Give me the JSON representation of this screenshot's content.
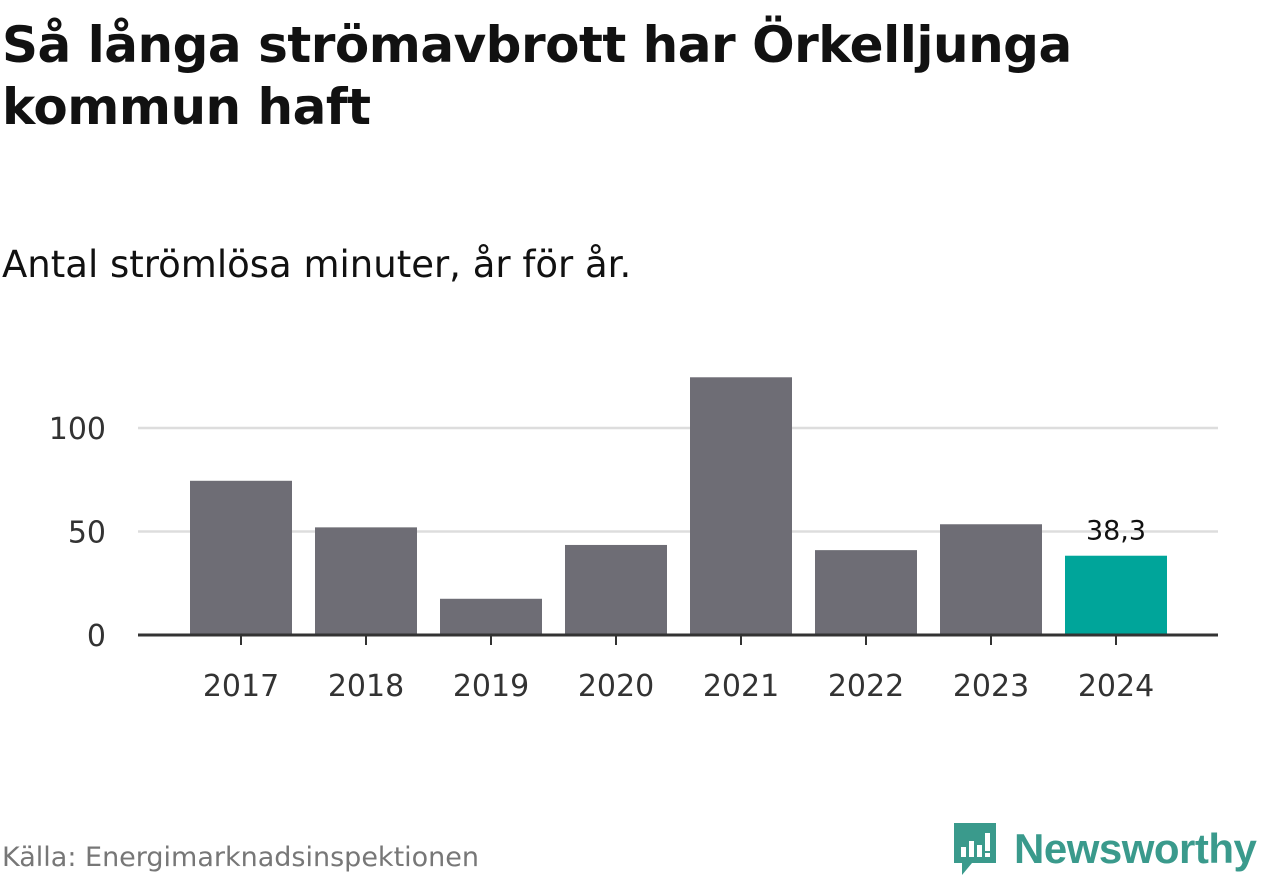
{
  "chart_data": {
    "type": "bar",
    "title": "Så långa strömavbrott har Örkelljunga kommun haft",
    "subtitle": "Antal strömlösa minuter, år för år.",
    "categories": [
      "2017",
      "2018",
      "2019",
      "2020",
      "2021",
      "2022",
      "2023",
      "2024"
    ],
    "values": [
      74.5,
      52,
      17.5,
      43.5,
      124.5,
      41,
      53.5,
      38.3
    ],
    "highlight_index": 7,
    "data_labels": [
      {
        "index": 7,
        "text": "38,3"
      }
    ],
    "ylim": [
      0,
      135
    ],
    "yticks": [
      0,
      50,
      100
    ],
    "ytick_labels": [
      "0",
      "50",
      "100"
    ],
    "grid": true,
    "xlabel": "",
    "ylabel": "",
    "colors": {
      "bar": "#6e6d75",
      "highlight": "#00a59a",
      "grid": "#dddddd",
      "axis": "#333333"
    }
  },
  "source": "Källa: Energimarknadsinspektionen",
  "brand": {
    "name": "Newsworthy",
    "icon": "newsworthy-logo-icon",
    "color": "#3a9a8c"
  }
}
